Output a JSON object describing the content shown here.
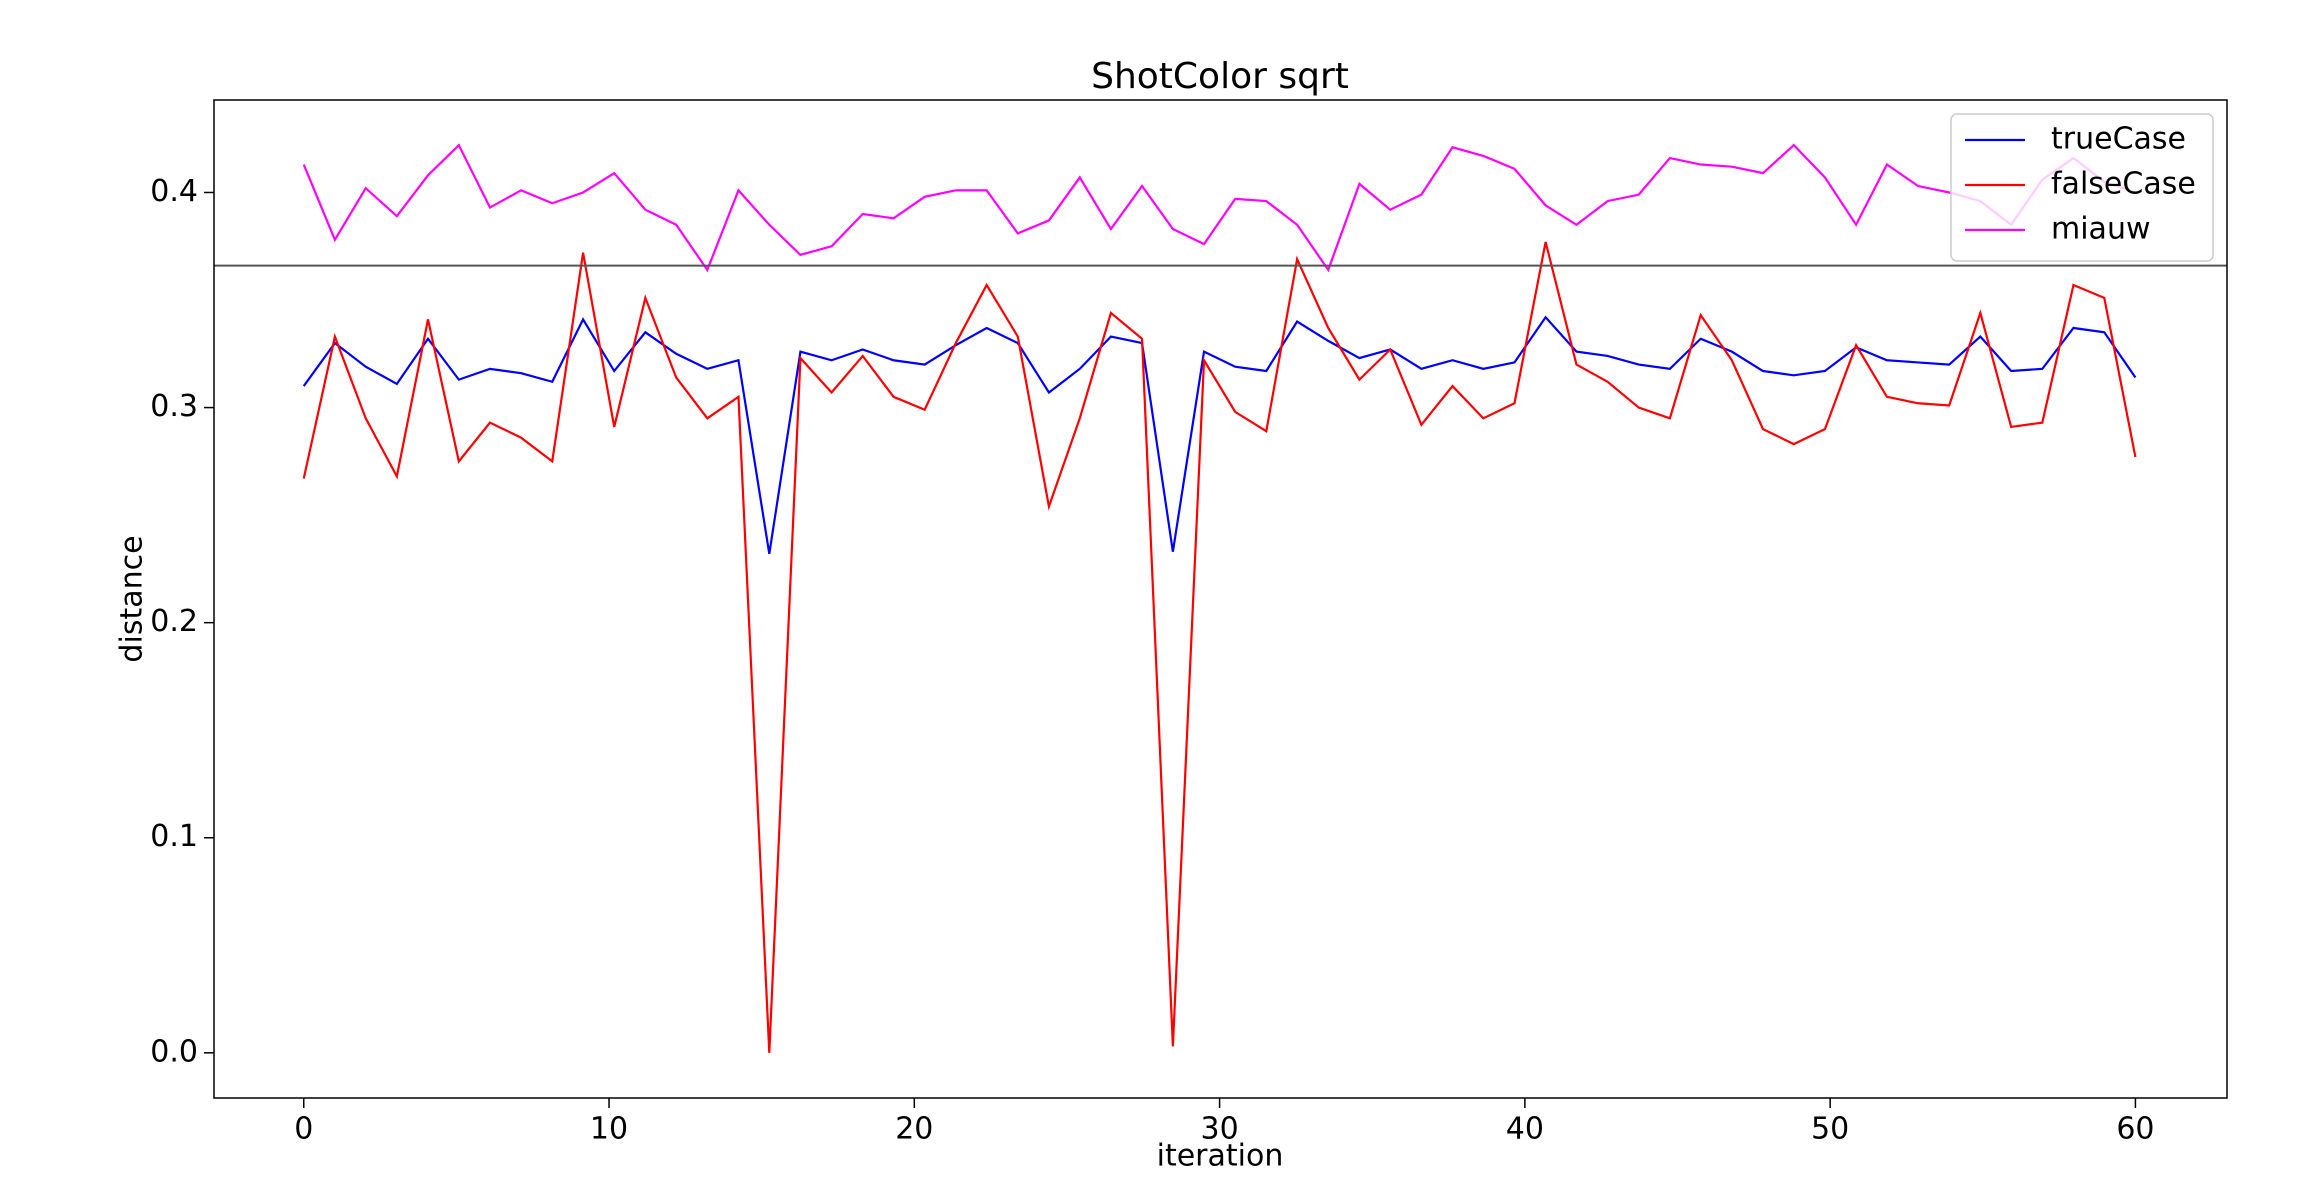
{
  "chart_data": {
    "type": "line",
    "title": "ShotColor sqrt",
    "xlabel": "iteration",
    "ylabel": "distance",
    "x": [
      0,
      1.02,
      2.03,
      3.05,
      4.07,
      5.08,
      6.1,
      7.12,
      8.14,
      9.15,
      10.17,
      11.19,
      12.2,
      13.22,
      14.24,
      15.25,
      16.27,
      17.29,
      18.31,
      19.32,
      20.34,
      21.36,
      22.37,
      23.39,
      24.41,
      25.42,
      26.44,
      27.46,
      28.47,
      29.49,
      30.51,
      31.53,
      32.54,
      33.56,
      34.58,
      35.59,
      36.61,
      37.63,
      38.64,
      39.66,
      40.68,
      41.69,
      42.71,
      43.73,
      44.75,
      45.76,
      46.78,
      47.8,
      48.81,
      49.83,
      50.85,
      51.86,
      52.88,
      53.9,
      54.92,
      55.93,
      56.95,
      57.97,
      58.98,
      60
    ],
    "series": [
      {
        "name": "trueCase",
        "color": "#0000ff",
        "values": [
          0.31,
          0.33,
          0.319,
          0.311,
          0.332,
          0.313,
          0.318,
          0.316,
          0.312,
          0.341,
          0.317,
          0.335,
          0.325,
          0.318,
          0.322,
          0.232,
          0.326,
          0.322,
          0.327,
          0.322,
          0.32,
          0.329,
          0.337,
          0.33,
          0.307,
          0.318,
          0.333,
          0.33,
          0.233,
          0.326,
          0.319,
          0.317,
          0.34,
          0.331,
          0.323,
          0.327,
          0.318,
          0.322,
          0.318,
          0.321,
          0.342,
          0.326,
          0.324,
          0.32,
          0.318,
          0.332,
          0.326,
          0.317,
          0.315,
          0.317,
          0.328,
          0.322,
          0.321,
          0.32,
          0.333,
          0.317,
          0.318,
          0.337,
          0.335,
          0.314
        ]
      },
      {
        "name": "falseCase",
        "color": "#ff0000",
        "values": [
          0.267,
          0.333,
          0.295,
          0.268,
          0.341,
          0.275,
          0.293,
          0.286,
          0.275,
          0.372,
          0.291,
          0.351,
          0.314,
          0.295,
          0.305,
          0.0,
          0.323,
          0.307,
          0.324,
          0.305,
          0.299,
          0.33,
          0.357,
          0.333,
          0.254,
          0.295,
          0.344,
          0.332,
          0.003,
          0.322,
          0.298,
          0.289,
          0.369,
          0.337,
          0.313,
          0.327,
          0.292,
          0.31,
          0.295,
          0.302,
          0.377,
          0.32,
          0.312,
          0.3,
          0.295,
          0.343,
          0.322,
          0.29,
          0.283,
          0.29,
          0.329,
          0.305,
          0.302,
          0.301,
          0.344,
          0.291,
          0.293,
          0.357,
          0.351,
          0.277
        ]
      },
      {
        "name": "miauw",
        "color": "#ff00ff",
        "values": [
          0.413,
          0.378,
          0.402,
          0.389,
          0.408,
          0.422,
          0.393,
          0.401,
          0.395,
          0.4,
          0.409,
          0.392,
          0.385,
          0.364,
          0.401,
          0.385,
          0.371,
          0.375,
          0.39,
          0.388,
          0.398,
          0.401,
          0.401,
          0.381,
          0.387,
          0.407,
          0.383,
          0.403,
          0.383,
          0.376,
          0.397,
          0.396,
          0.385,
          0.364,
          0.404,
          0.392,
          0.399,
          0.421,
          0.417,
          0.411,
          0.394,
          0.385,
          0.396,
          0.399,
          0.416,
          0.413,
          0.412,
          0.409,
          0.422,
          0.407,
          0.385,
          0.413,
          0.403,
          0.4,
          0.396,
          0.385,
          0.406,
          0.416,
          0.405,
          0.4
        ]
      }
    ],
    "hline": 0.366,
    "hline_color": "#555555",
    "xlim": [
      -2.94,
      63.0
    ],
    "ylim": [
      -0.021,
      0.443
    ],
    "xticks": [
      0,
      10,
      20,
      30,
      40,
      50,
      60
    ],
    "yticks": [
      {
        "value": 0,
        "label": "0.0"
      },
      0.1,
      0.2,
      0.3,
      0.4
    ],
    "legend": "upper right",
    "grid": false
  }
}
